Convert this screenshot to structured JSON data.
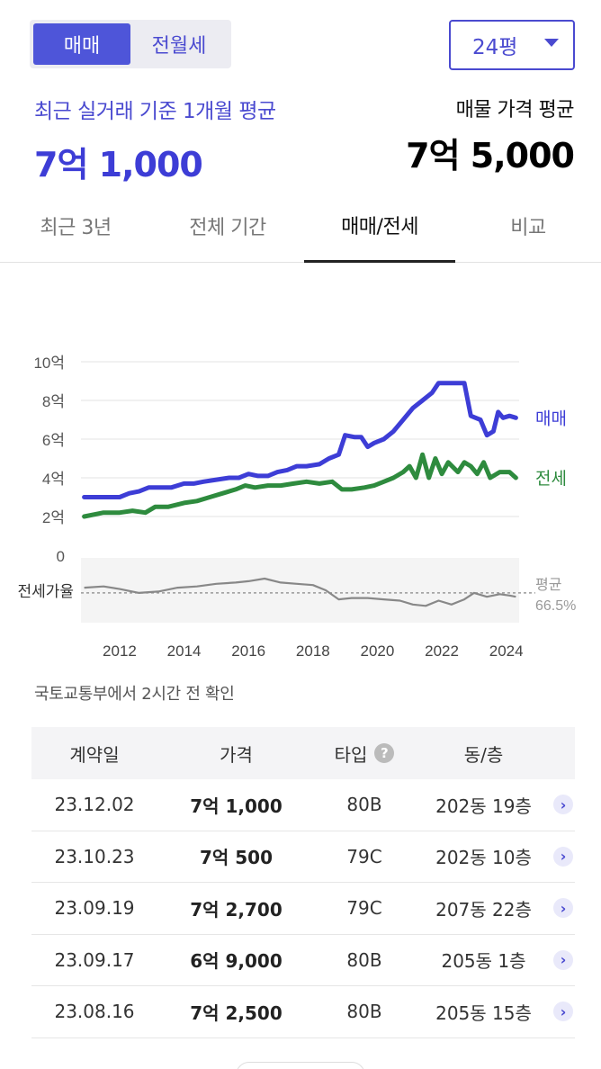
{
  "deal_type_toggle": {
    "options": [
      "매매",
      "전월세"
    ],
    "selected": "매매"
  },
  "size_select": {
    "value": "24평"
  },
  "summary": {
    "recent_label": "최근 실거래 기준 1개월 평균",
    "recent_value": "7억 1,000",
    "listing_label": "매물 가격 평균",
    "listing_value": "7억 5,000"
  },
  "tabs": [
    "최근 3년",
    "전체 기간",
    "매매/전세",
    "비교"
  ],
  "active_tab": "매매/전세",
  "colors": {
    "accent": "#4e55d9",
    "sale": "#3d3dd6",
    "jeonse": "#2e8b3e",
    "ratio": "#888888"
  },
  "chart_data": [
    {
      "type": "line",
      "title": "",
      "x_range": [
        2010.8,
        2024.4
      ],
      "y_range": [
        0,
        10
      ],
      "y_ticks": [
        "0",
        "2억",
        "4억",
        "6억",
        "8억",
        "10억"
      ],
      "x_ticks": [
        "2012",
        "2014",
        "2016",
        "2018",
        "2020",
        "2022",
        "2024"
      ],
      "unit": "억",
      "series": [
        {
          "name": "매매",
          "color": "#3d3dd6",
          "points": [
            [
              2010.9,
              3.0
            ],
            [
              2011.5,
              3.0
            ],
            [
              2012.0,
              3.0
            ],
            [
              2012.3,
              3.2
            ],
            [
              2012.6,
              3.3
            ],
            [
              2012.9,
              3.5
            ],
            [
              2013.3,
              3.5
            ],
            [
              2013.6,
              3.5
            ],
            [
              2014.0,
              3.7
            ],
            [
              2014.3,
              3.7
            ],
            [
              2014.6,
              3.8
            ],
            [
              2015.0,
              3.9
            ],
            [
              2015.4,
              4.0
            ],
            [
              2015.7,
              4.0
            ],
            [
              2016.0,
              4.2
            ],
            [
              2016.3,
              4.1
            ],
            [
              2016.6,
              4.1
            ],
            [
              2016.9,
              4.3
            ],
            [
              2017.2,
              4.4
            ],
            [
              2017.5,
              4.6
            ],
            [
              2017.8,
              4.6
            ],
            [
              2018.2,
              4.7
            ],
            [
              2018.5,
              5.0
            ],
            [
              2018.8,
              5.2
            ],
            [
              2019.0,
              6.2
            ],
            [
              2019.3,
              6.1
            ],
            [
              2019.5,
              6.1
            ],
            [
              2019.7,
              5.6
            ],
            [
              2019.9,
              5.8
            ],
            [
              2020.2,
              6.0
            ],
            [
              2020.5,
              6.4
            ],
            [
              2020.8,
              7.0
            ],
            [
              2021.1,
              7.6
            ],
            [
              2021.4,
              8.0
            ],
            [
              2021.7,
              8.4
            ],
            [
              2021.9,
              8.9
            ],
            [
              2022.2,
              8.9
            ],
            [
              2022.5,
              8.9
            ],
            [
              2022.7,
              8.9
            ],
            [
              2022.9,
              7.2
            ],
            [
              2023.2,
              7.0
            ],
            [
              2023.4,
              6.2
            ],
            [
              2023.6,
              6.4
            ],
            [
              2023.75,
              7.4
            ],
            [
              2023.9,
              7.1
            ],
            [
              2024.1,
              7.2
            ],
            [
              2024.3,
              7.1
            ]
          ],
          "label": "매매"
        },
        {
          "name": "전세",
          "color": "#2e8b3e",
          "points": [
            [
              2010.9,
              2.0
            ],
            [
              2011.5,
              2.2
            ],
            [
              2012.0,
              2.2
            ],
            [
              2012.4,
              2.3
            ],
            [
              2012.8,
              2.2
            ],
            [
              2013.1,
              2.5
            ],
            [
              2013.5,
              2.5
            ],
            [
              2014.0,
              2.7
            ],
            [
              2014.4,
              2.8
            ],
            [
              2014.8,
              3.0
            ],
            [
              2015.2,
              3.2
            ],
            [
              2015.6,
              3.4
            ],
            [
              2015.9,
              3.6
            ],
            [
              2016.2,
              3.5
            ],
            [
              2016.6,
              3.6
            ],
            [
              2017.0,
              3.6
            ],
            [
              2017.4,
              3.7
            ],
            [
              2017.8,
              3.8
            ],
            [
              2018.2,
              3.7
            ],
            [
              2018.6,
              3.8
            ],
            [
              2018.9,
              3.4
            ],
            [
              2019.2,
              3.4
            ],
            [
              2019.6,
              3.5
            ],
            [
              2019.9,
              3.6
            ],
            [
              2020.2,
              3.8
            ],
            [
              2020.5,
              4.0
            ],
            [
              2020.8,
              4.3
            ],
            [
              2021.0,
              4.6
            ],
            [
              2021.2,
              4.0
            ],
            [
              2021.4,
              5.2
            ],
            [
              2021.6,
              4.0
            ],
            [
              2021.8,
              5.0
            ],
            [
              2022.0,
              4.2
            ],
            [
              2022.2,
              4.8
            ],
            [
              2022.5,
              4.3
            ],
            [
              2022.7,
              4.8
            ],
            [
              2022.9,
              4.6
            ],
            [
              2023.1,
              4.2
            ],
            [
              2023.3,
              4.8
            ],
            [
              2023.5,
              4.0
            ],
            [
              2023.8,
              4.3
            ],
            [
              2024.1,
              4.3
            ],
            [
              2024.3,
              4.0
            ]
          ],
          "label": "전세"
        }
      ]
    },
    {
      "type": "line",
      "title": "전세가율",
      "x_range": [
        2010.8,
        2024.4
      ],
      "y_range": [
        55,
        80
      ],
      "average": 66.5,
      "average_label": "평균",
      "average_value_label": "66.5%",
      "series": [
        {
          "name": "전세가율",
          "color": "#888888",
          "points": [
            [
              2010.9,
              68.5
            ],
            [
              2011.5,
              69.0
            ],
            [
              2012.0,
              68.0
            ],
            [
              2012.6,
              66.5
            ],
            [
              2013.2,
              67.0
            ],
            [
              2013.8,
              68.5
            ],
            [
              2014.4,
              69.0
            ],
            [
              2015.0,
              70.0
            ],
            [
              2015.6,
              70.5
            ],
            [
              2016.0,
              71.0
            ],
            [
              2016.5,
              72.0
            ],
            [
              2017.0,
              70.5
            ],
            [
              2017.5,
              70.0
            ],
            [
              2018.0,
              69.5
            ],
            [
              2018.4,
              67.5
            ],
            [
              2018.8,
              64.0
            ],
            [
              2019.2,
              64.5
            ],
            [
              2019.7,
              64.5
            ],
            [
              2020.2,
              64.0
            ],
            [
              2020.7,
              63.5
            ],
            [
              2021.1,
              62.0
            ],
            [
              2021.5,
              61.5
            ],
            [
              2021.9,
              63.5
            ],
            [
              2022.3,
              62.0
            ],
            [
              2022.7,
              64.0
            ],
            [
              2023.0,
              66.5
            ],
            [
              2023.4,
              65.0
            ],
            [
              2023.8,
              66.0
            ],
            [
              2024.1,
              65.5
            ],
            [
              2024.3,
              65.0
            ]
          ]
        }
      ]
    }
  ],
  "source_text": "국토교통부에서 2시간 전 확인",
  "transactions": {
    "headers": [
      "계약일",
      "가격",
      "타입",
      "동/층"
    ],
    "rows": [
      {
        "date": "23.12.02",
        "price": "7억 1,000",
        "type": "80B",
        "unit": "202동 19층"
      },
      {
        "date": "23.10.23",
        "price": "7억 500",
        "type": "79C",
        "unit": "202동 10층"
      },
      {
        "date": "23.09.19",
        "price": "7억 2,700",
        "type": "79C",
        "unit": "207동 22층"
      },
      {
        "date": "23.09.17",
        "price": "6억 9,000",
        "type": "80B",
        "unit": "205동 1층"
      },
      {
        "date": "23.08.16",
        "price": "7억 2,500",
        "type": "80B",
        "unit": "205동 15층"
      }
    ]
  }
}
